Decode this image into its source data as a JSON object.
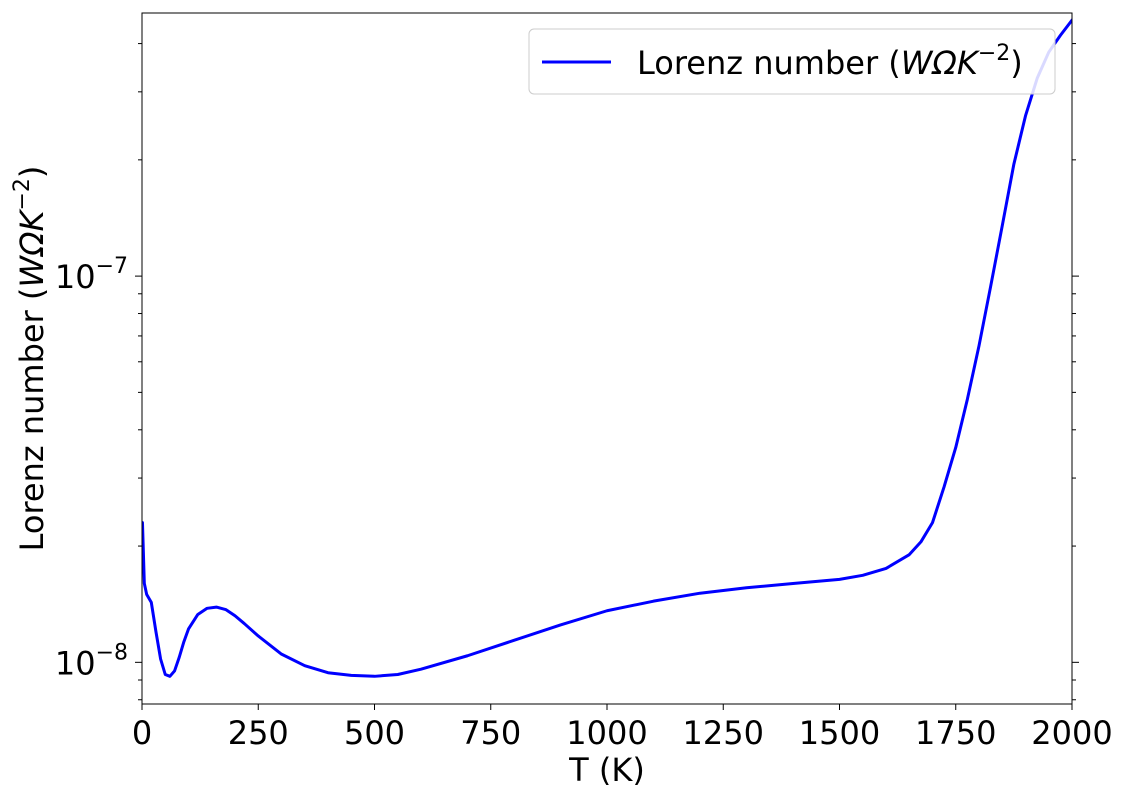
{
  "chart_data": {
    "type": "line",
    "title": "",
    "xlabel": "T (K)",
    "ylabel": "Lorenz number (WΩK⁻²)",
    "ylabel_parts": {
      "prefix": "Lorenz number (",
      "symbol": "WΩK",
      "sup": "−2",
      "suffix": ")"
    },
    "xlim": [
      0,
      2000
    ],
    "ylim": [
      7.8e-09,
      4.8e-07
    ],
    "yscale": "log",
    "x_ticks": [
      0,
      250,
      500,
      750,
      1000,
      1250,
      1500,
      1750,
      2000
    ],
    "x_tick_labels": [
      "0",
      "250",
      "500",
      "750",
      "1000",
      "1250",
      "1500",
      "1750",
      "2000"
    ],
    "y_major_ticks": [
      {
        "value": 1e-08,
        "base": "10",
        "exp": "−8"
      },
      {
        "value": 1e-07,
        "base": "10",
        "exp": "−7"
      }
    ],
    "grid": false,
    "legend": "top-right",
    "series": [
      {
        "name": "Lorenz number (WΩK⁻²)",
        "legend_parts": {
          "prefix": "Lorenz number (",
          "symbol": "WΩK",
          "sup": "−2",
          "suffix": ")"
        },
        "color": "#0000ff",
        "x": [
          1,
          5,
          10,
          20,
          30,
          40,
          50,
          60,
          70,
          80,
          90,
          100,
          120,
          140,
          160,
          180,
          200,
          220,
          250,
          300,
          350,
          400,
          450,
          500,
          550,
          600,
          700,
          800,
          900,
          1000,
          1100,
          1200,
          1300,
          1400,
          1500,
          1550,
          1600,
          1650,
          1675,
          1700,
          1725,
          1750,
          1775,
          1800,
          1825,
          1850,
          1875,
          1900,
          1925,
          1950,
          1975,
          2000
        ],
        "y": [
          2.3e-08,
          1.6e-08,
          1.5e-08,
          1.43e-08,
          1.2e-08,
          1.02e-08,
          9.3e-09,
          9.2e-09,
          9.5e-09,
          1.03e-08,
          1.13e-08,
          1.22e-08,
          1.33e-08,
          1.38e-08,
          1.39e-08,
          1.37e-08,
          1.32e-08,
          1.26e-08,
          1.17e-08,
          1.05e-08,
          9.8e-09,
          9.4e-09,
          9.25e-09,
          9.2e-09,
          9.3e-09,
          9.6e-09,
          1.04e-08,
          1.14e-08,
          1.25e-08,
          1.36e-08,
          1.44e-08,
          1.51e-08,
          1.56e-08,
          1.6e-08,
          1.64e-08,
          1.68e-08,
          1.75e-08,
          1.9e-08,
          2.05e-08,
          2.3e-08,
          2.85e-08,
          3.6e-08,
          4.8e-08,
          6.6e-08,
          9.4e-08,
          1.35e-07,
          1.95e-07,
          2.6e-07,
          3.25e-07,
          3.8e-07,
          4.2e-07,
          4.6e-07
        ]
      }
    ]
  }
}
